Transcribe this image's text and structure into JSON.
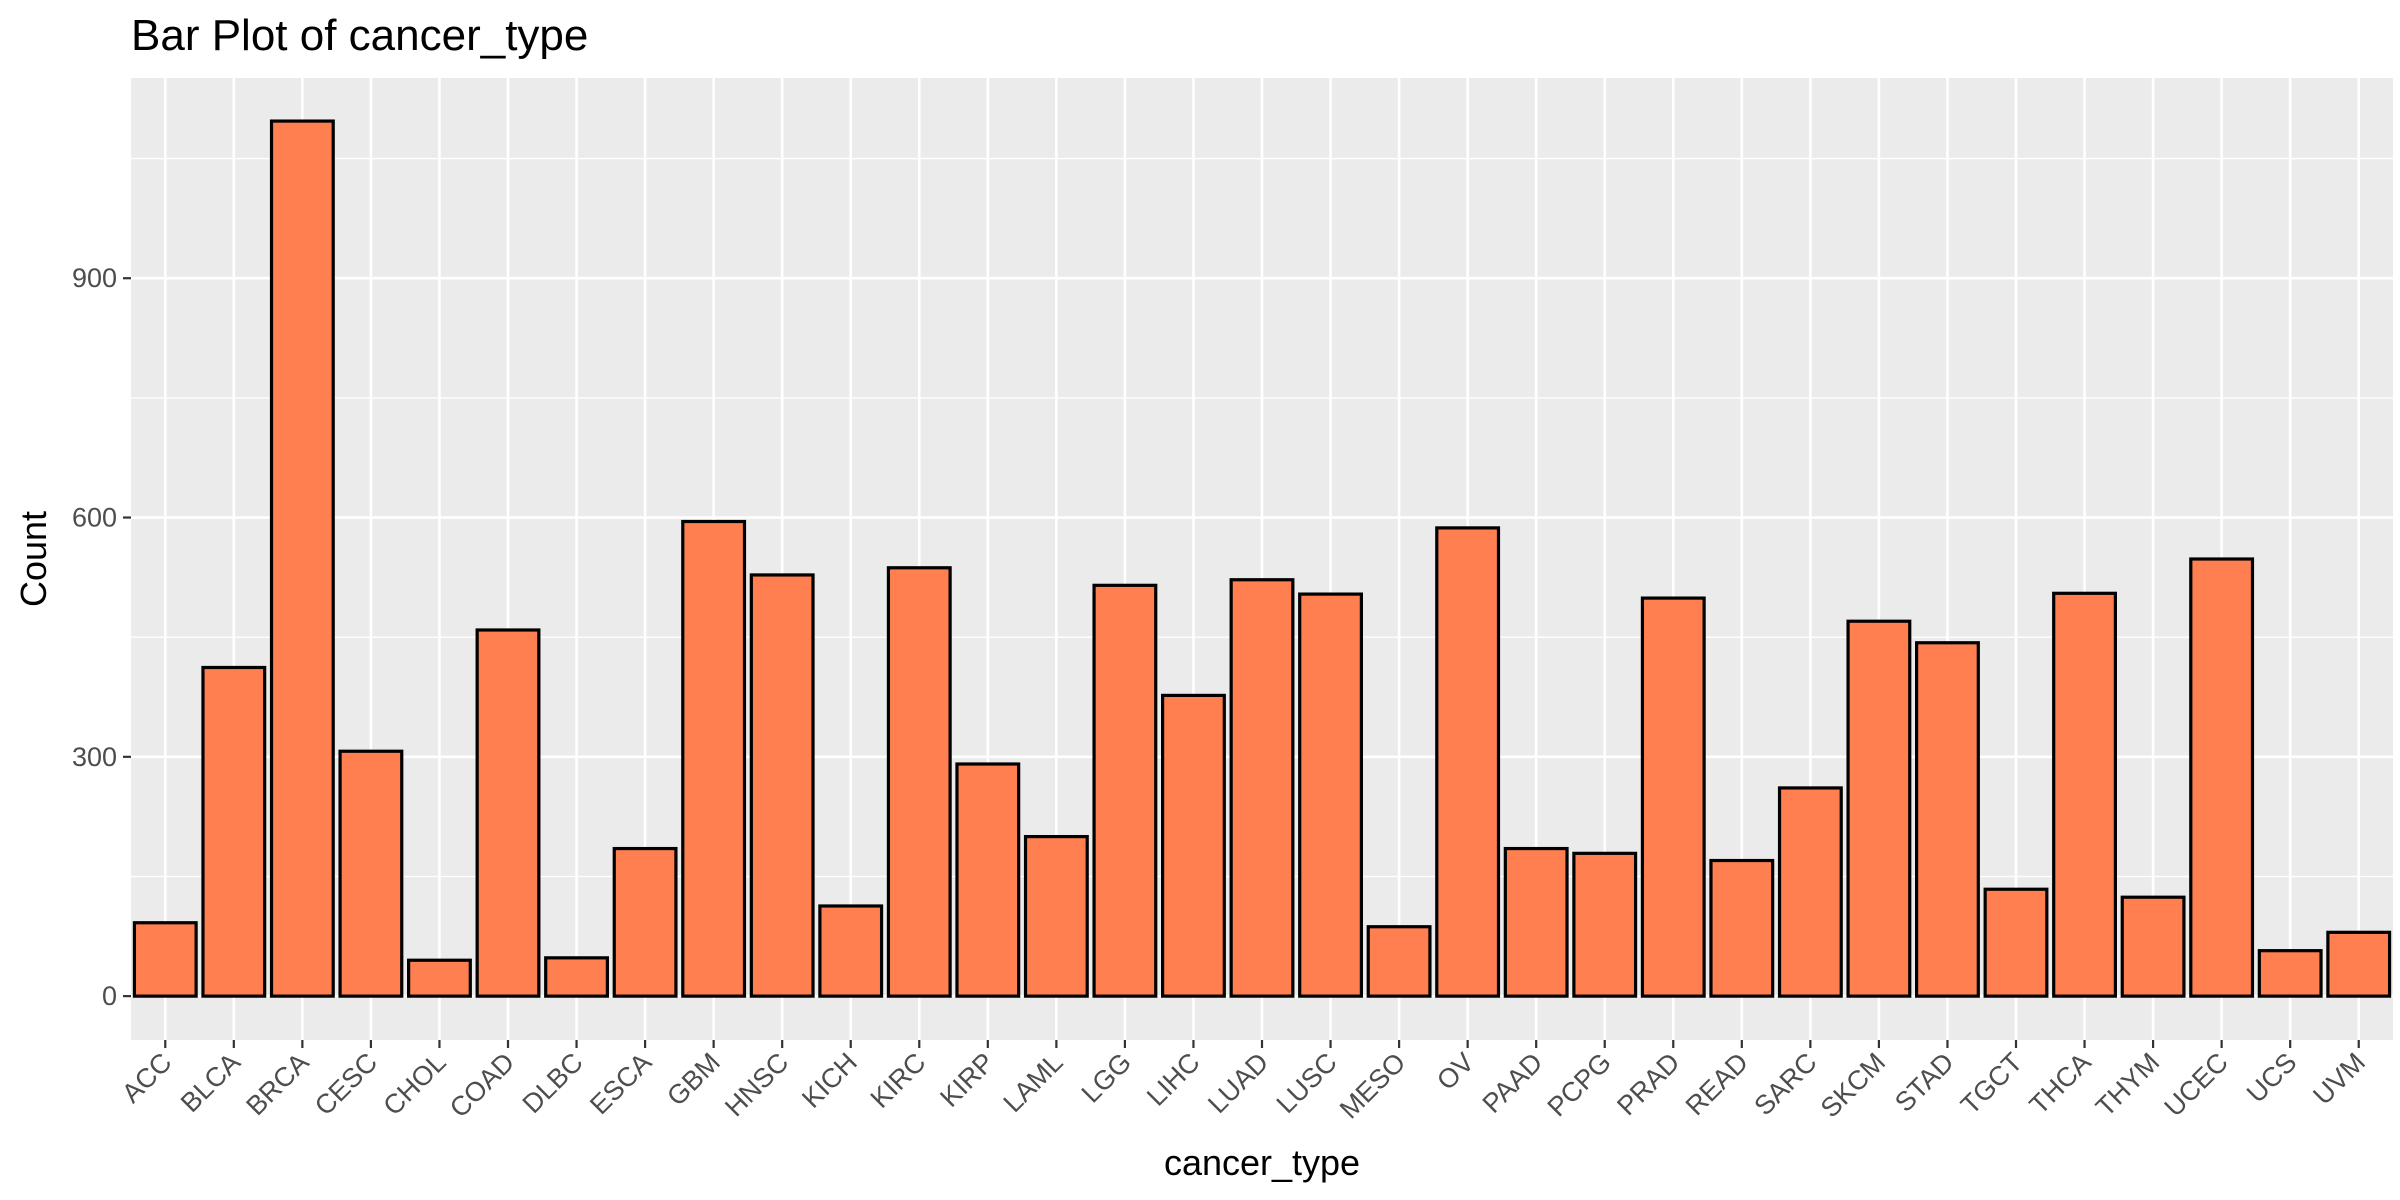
{
  "chart_data": {
    "type": "bar",
    "title": "Bar Plot of cancer_type",
    "xlabel": "cancer_type",
    "ylabel": "Count",
    "categories": [
      "ACC",
      "BLCA",
      "BRCA",
      "CESC",
      "CHOL",
      "COAD",
      "DLBC",
      "ESCA",
      "GBM",
      "HNSC",
      "KICH",
      "KIRC",
      "KIRP",
      "LAML",
      "LGG",
      "LIHC",
      "LUAD",
      "LUSC",
      "MESO",
      "OV",
      "PAAD",
      "PCPG",
      "PRAD",
      "READ",
      "SARC",
      "SKCM",
      "STAD",
      "TGCT",
      "THCA",
      "THYM",
      "UCEC",
      "UCS",
      "UVM"
    ],
    "values": [
      92,
      412,
      1097,
      307,
      45,
      459,
      48,
      185,
      595,
      528,
      113,
      537,
      291,
      200,
      515,
      377,
      522,
      504,
      87,
      587,
      185,
      179,
      499,
      170,
      261,
      470,
      443,
      134,
      505,
      124,
      548,
      57,
      80
    ],
    "yticks": [
      0,
      300,
      600,
      900
    ],
    "ylim": [
      -55,
      1151
    ],
    "grid": true,
    "legend": "none",
    "colors": {
      "bar_fill": "#FF7F50",
      "bar_stroke": "#000000",
      "panel_bg": "#EBEBEB",
      "grid": "#FFFFFF",
      "tick_text": "#4D4D4D"
    }
  }
}
